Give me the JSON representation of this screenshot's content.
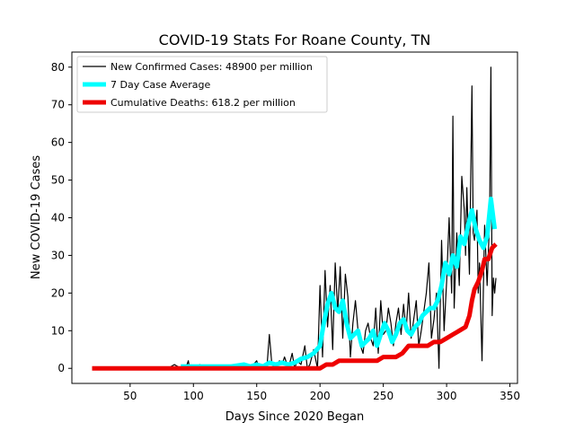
{
  "chart_data": {
    "type": "line",
    "title": "COVID-19 Stats For Roane County, TN",
    "xlabel": "Days Since 2020 Began",
    "ylabel": "New COVID-19 Cases",
    "xlim": [
      4,
      356
    ],
    "ylim": [
      -4,
      84
    ],
    "xticks": [
      50,
      100,
      150,
      200,
      250,
      300,
      350
    ],
    "yticks": [
      0,
      10,
      20,
      30,
      40,
      50,
      60,
      70,
      80
    ],
    "grid": false,
    "legend_position": "top-left",
    "series": [
      {
        "name": "New Confirmed Cases: 48900 per million",
        "color": "#000000",
        "x": [
          20,
          80,
          85,
          90,
          95,
          96,
          97,
          100,
          105,
          110,
          130,
          140,
          145,
          150,
          152,
          155,
          158,
          160,
          162,
          165,
          168,
          170,
          172,
          175,
          178,
          180,
          182,
          185,
          188,
          190,
          192,
          195,
          198,
          200,
          202,
          204,
          206,
          208,
          210,
          212,
          214,
          216,
          218,
          220,
          222,
          224,
          226,
          228,
          230,
          232,
          234,
          236,
          238,
          240,
          242,
          244,
          246,
          248,
          250,
          252,
          254,
          256,
          258,
          260,
          262,
          264,
          266,
          268,
          270,
          272,
          274,
          276,
          278,
          280,
          282,
          284,
          286,
          288,
          290,
          292,
          294,
          296,
          298,
          300,
          302,
          304,
          305,
          306,
          308,
          310,
          312,
          314,
          315,
          316,
          318,
          320,
          321,
          322,
          324,
          325,
          326,
          328,
          330,
          332,
          334,
          335,
          336,
          337,
          338,
          339
        ],
        "values": [
          0,
          0,
          1,
          0,
          1,
          2,
          0,
          0,
          1,
          0,
          0,
          1,
          0,
          2,
          0,
          1,
          0,
          9,
          1,
          0,
          2,
          1,
          3,
          0,
          4,
          0,
          2,
          1,
          6,
          0,
          1,
          5,
          0,
          22,
          3,
          26,
          11,
          22,
          5,
          28,
          15,
          27,
          8,
          25,
          19,
          3,
          12,
          18,
          10,
          6,
          4,
          10,
          12,
          8,
          6,
          16,
          4,
          18,
          9,
          10,
          16,
          12,
          6,
          12,
          16,
          9,
          17,
          10,
          20,
          8,
          13,
          18,
          6,
          10,
          15,
          20,
          28,
          8,
          13,
          20,
          0,
          34,
          10,
          23,
          40,
          20,
          67,
          16,
          36,
          22,
          51,
          42,
          30,
          48,
          25,
          75,
          36,
          34,
          42,
          20,
          28,
          2,
          38,
          22,
          40,
          80,
          14,
          24,
          20,
          24
        ]
      },
      {
        "name": "7 Day Case Average",
        "color": "#00ffff",
        "x": [
          90,
          100,
          110,
          120,
          130,
          140,
          145,
          150,
          155,
          160,
          165,
          170,
          175,
          180,
          185,
          190,
          195,
          200,
          203,
          206,
          209,
          212,
          215,
          218,
          221,
          224,
          227,
          230,
          233,
          236,
          239,
          242,
          245,
          248,
          251,
          254,
          257,
          260,
          263,
          266,
          269,
          272,
          275,
          278,
          281,
          284,
          287,
          290,
          293,
          296,
          299,
          302,
          305,
          308,
          311,
          314,
          317,
          320,
          323,
          326,
          329,
          332,
          335,
          338
        ],
        "values": [
          0.5,
          0.5,
          0.5,
          0.5,
          0.5,
          1,
          0.5,
          1,
          0.5,
          1.5,
          1,
          1.5,
          1,
          1.5,
          2.5,
          3,
          4,
          6,
          12,
          17,
          20,
          16,
          15,
          18,
          12,
          8,
          9,
          10,
          6,
          7,
          8,
          10,
          6,
          9,
          12,
          10,
          7,
          9,
          12,
          13,
          10,
          9,
          11,
          12,
          14,
          15,
          16,
          16,
          18,
          22,
          28,
          25,
          30,
          27,
          35,
          33,
          38,
          42,
          37,
          34,
          32,
          35,
          45,
          37
        ]
      },
      {
        "name": "Cumulative Deaths: 618.2 per million",
        "color": "#ee0000",
        "x": [
          20,
          200,
          205,
          210,
          215,
          220,
          225,
          230,
          235,
          240,
          245,
          250,
          255,
          260,
          265,
          270,
          275,
          280,
          285,
          290,
          295,
          300,
          305,
          310,
          315,
          318,
          320,
          322,
          325,
          328,
          330,
          333,
          336,
          339
        ],
        "values": [
          0,
          0,
          1,
          1,
          2,
          2,
          2,
          2,
          2,
          2,
          2,
          3,
          3,
          3,
          4,
          6,
          6,
          6,
          6,
          7,
          7,
          8,
          9,
          10,
          11,
          14,
          18,
          21,
          23,
          26,
          29,
          29,
          32,
          33
        ]
      }
    ]
  }
}
